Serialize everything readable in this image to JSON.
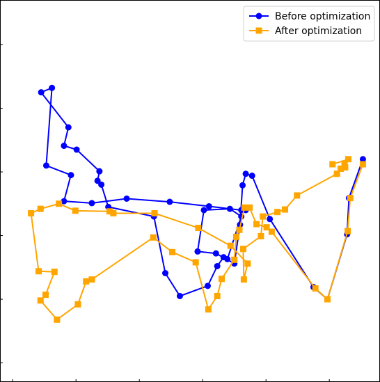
{
  "chart_data": {
    "type": "line",
    "title": "",
    "xlabel": "",
    "ylabel": "",
    "xlim": [
      -0.2,
      5.8
    ],
    "ylim": [
      -0.3,
      5.7
    ],
    "grid": false,
    "legend_placement": "top-right",
    "x_ticks": [
      0,
      1,
      2,
      3,
      4,
      5
    ],
    "y_ticks": [
      0,
      1,
      2,
      3,
      4,
      5
    ],
    "series": [
      {
        "name": "Before optimization",
        "color": "#0000ff",
        "marker": "circle",
        "x": [
          5.53,
          5.31,
          5.28,
          4.97,
          4.75,
          4.06,
          3.78,
          3.68,
          3.63,
          3.59,
          3.5,
          3.21,
          2.92,
          3.02,
          3.43,
          3.61,
          3.39,
          3.33,
          3.23,
          3.08,
          2.64,
          2.41,
          2.23,
          1.51,
          1.4,
          1.34,
          1.37,
          1.01,
          0.81,
          0.88,
          0.45,
          0.62,
          0.53,
          0.92,
          0.81,
          1.25,
          1.8,
          2.48,
          3.1,
          3.61,
          3.68
        ],
        "y": [
          3.2,
          2.59,
          2.02,
          1.0,
          1.19,
          2.26,
          2.94,
          2.97,
          2.79,
          2.17,
          1.56,
          1.72,
          1.75,
          2.4,
          2.42,
          2.3,
          1.63,
          1.66,
          1.52,
          1.21,
          1.05,
          1.41,
          2.3,
          2.45,
          2.8,
          2.86,
          3.01,
          3.35,
          3.41,
          3.7,
          4.25,
          4.32,
          3.1,
          2.95,
          2.54,
          2.51,
          2.58,
          2.53,
          2.46,
          2.4,
          2.4
        ]
      },
      {
        "name": "After optimization",
        "color": "#ffa500",
        "marker": "square",
        "x": [
          5.53,
          5.33,
          5.29,
          4.97,
          4.78,
          4.09,
          4.01,
          3.85,
          3.74,
          3.66,
          3.58,
          3.53,
          3.5,
          3.3,
          3.23,
          3.09,
          2.89,
          2.52,
          2.22,
          1.25,
          1.16,
          1.03,
          0.7,
          0.44,
          0.52,
          0.66,
          0.41,
          0.29,
          0.44,
          0.73,
          0.99,
          1.53,
          1.59,
          2.24,
          2.93,
          3.44,
          3.71,
          3.65,
          3.64,
          3.92,
          3.95,
          4.18,
          4.3,
          4.49,
          5.12,
          5.18,
          5.25,
          5.24,
          5.3,
          5.05
        ],
        "y": [
          3.12,
          2.59,
          2.07,
          1.0,
          1.17,
          2.06,
          2.13,
          2.18,
          2.44,
          2.44,
          2.09,
          1.98,
          1.62,
          1.32,
          1.05,
          0.84,
          1.58,
          1.74,
          1.97,
          1.31,
          1.28,
          0.92,
          0.68,
          0.98,
          1.07,
          1.43,
          1.44,
          2.35,
          2.42,
          2.5,
          2.39,
          2.38,
          2.35,
          2.35,
          2.12,
          1.84,
          1.56,
          1.31,
          1.79,
          1.99,
          2.3,
          2.37,
          2.41,
          2.63,
          2.97,
          3.05,
          3.07,
          3.13,
          3.2,
          3.12
        ]
      }
    ]
  }
}
